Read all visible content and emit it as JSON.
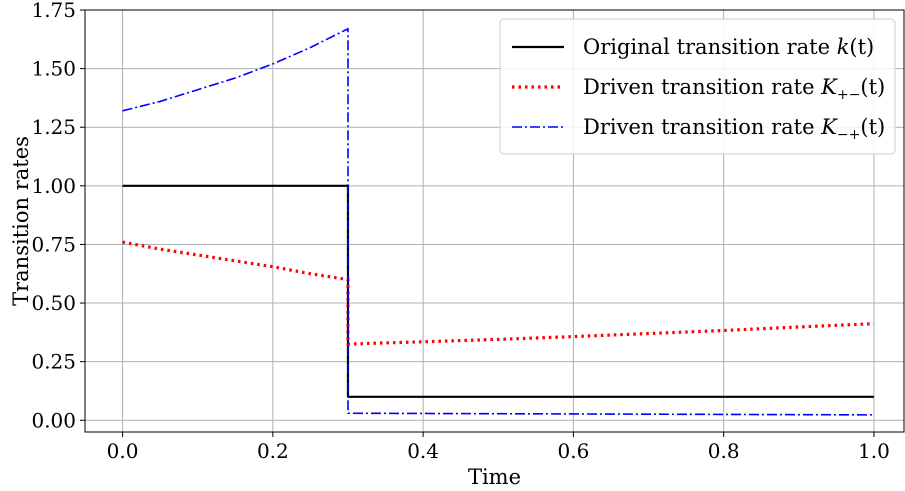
{
  "chart_data": {
    "type": "line",
    "xlabel": "Time",
    "ylabel": "Transition rates",
    "xlim": [
      -0.05,
      1.04
    ],
    "ylim": [
      -0.05,
      1.75
    ],
    "xticks": [
      "0.0",
      "0.2",
      "0.4",
      "0.6",
      "0.8",
      "1.0"
    ],
    "xtick_values": [
      0.0,
      0.2,
      0.4,
      0.6,
      0.8,
      1.0
    ],
    "yticks": [
      "0.00",
      "0.25",
      "0.50",
      "0.75",
      "1.00",
      "1.25",
      "1.50",
      "1.75"
    ],
    "ytick_values": [
      0.0,
      0.25,
      0.5,
      0.75,
      1.0,
      1.25,
      1.5,
      1.75
    ],
    "grid": true,
    "legend_position": "top-right",
    "series": [
      {
        "name": "Original transition rate k(t)",
        "legend_text": "Original transition rate ",
        "legend_math": "k",
        "legend_sub": "",
        "legend_tail": "(t)",
        "color": "#000000",
        "style": "solid",
        "x": [
          0.0,
          0.3,
          0.3,
          1.0
        ],
        "y": [
          1.0,
          1.0,
          0.1,
          0.1
        ]
      },
      {
        "name": "Driven transition rate K+−(t)",
        "legend_text": "Driven transition rate ",
        "legend_math": "K",
        "legend_sub": "+−",
        "legend_tail": "(t)",
        "color": "#ff0000",
        "style": "dotted",
        "x": [
          0.0,
          0.05,
          0.1,
          0.15,
          0.2,
          0.25,
          0.3,
          0.3,
          0.4,
          0.5,
          0.6,
          0.7,
          0.8,
          0.9,
          1.0
        ],
        "y": [
          0.76,
          0.73,
          0.705,
          0.68,
          0.655,
          0.625,
          0.6,
          0.325,
          0.335,
          0.345,
          0.357,
          0.37,
          0.383,
          0.398,
          0.412
        ]
      },
      {
        "name": "Driven transition rate K−+(t)",
        "legend_text": "Driven transition rate ",
        "legend_math": "K",
        "legend_sub": "−+",
        "legend_tail": "(t)",
        "color": "#0000ff",
        "style": "dashdot",
        "x": [
          0.0,
          0.05,
          0.1,
          0.15,
          0.2,
          0.25,
          0.3,
          0.3,
          0.4,
          0.5,
          0.6,
          0.7,
          0.8,
          0.9,
          1.0
        ],
        "y": [
          1.32,
          1.36,
          1.41,
          1.46,
          1.52,
          1.59,
          1.67,
          0.03,
          0.029,
          0.028,
          0.027,
          0.026,
          0.025,
          0.024,
          0.023
        ]
      }
    ]
  }
}
